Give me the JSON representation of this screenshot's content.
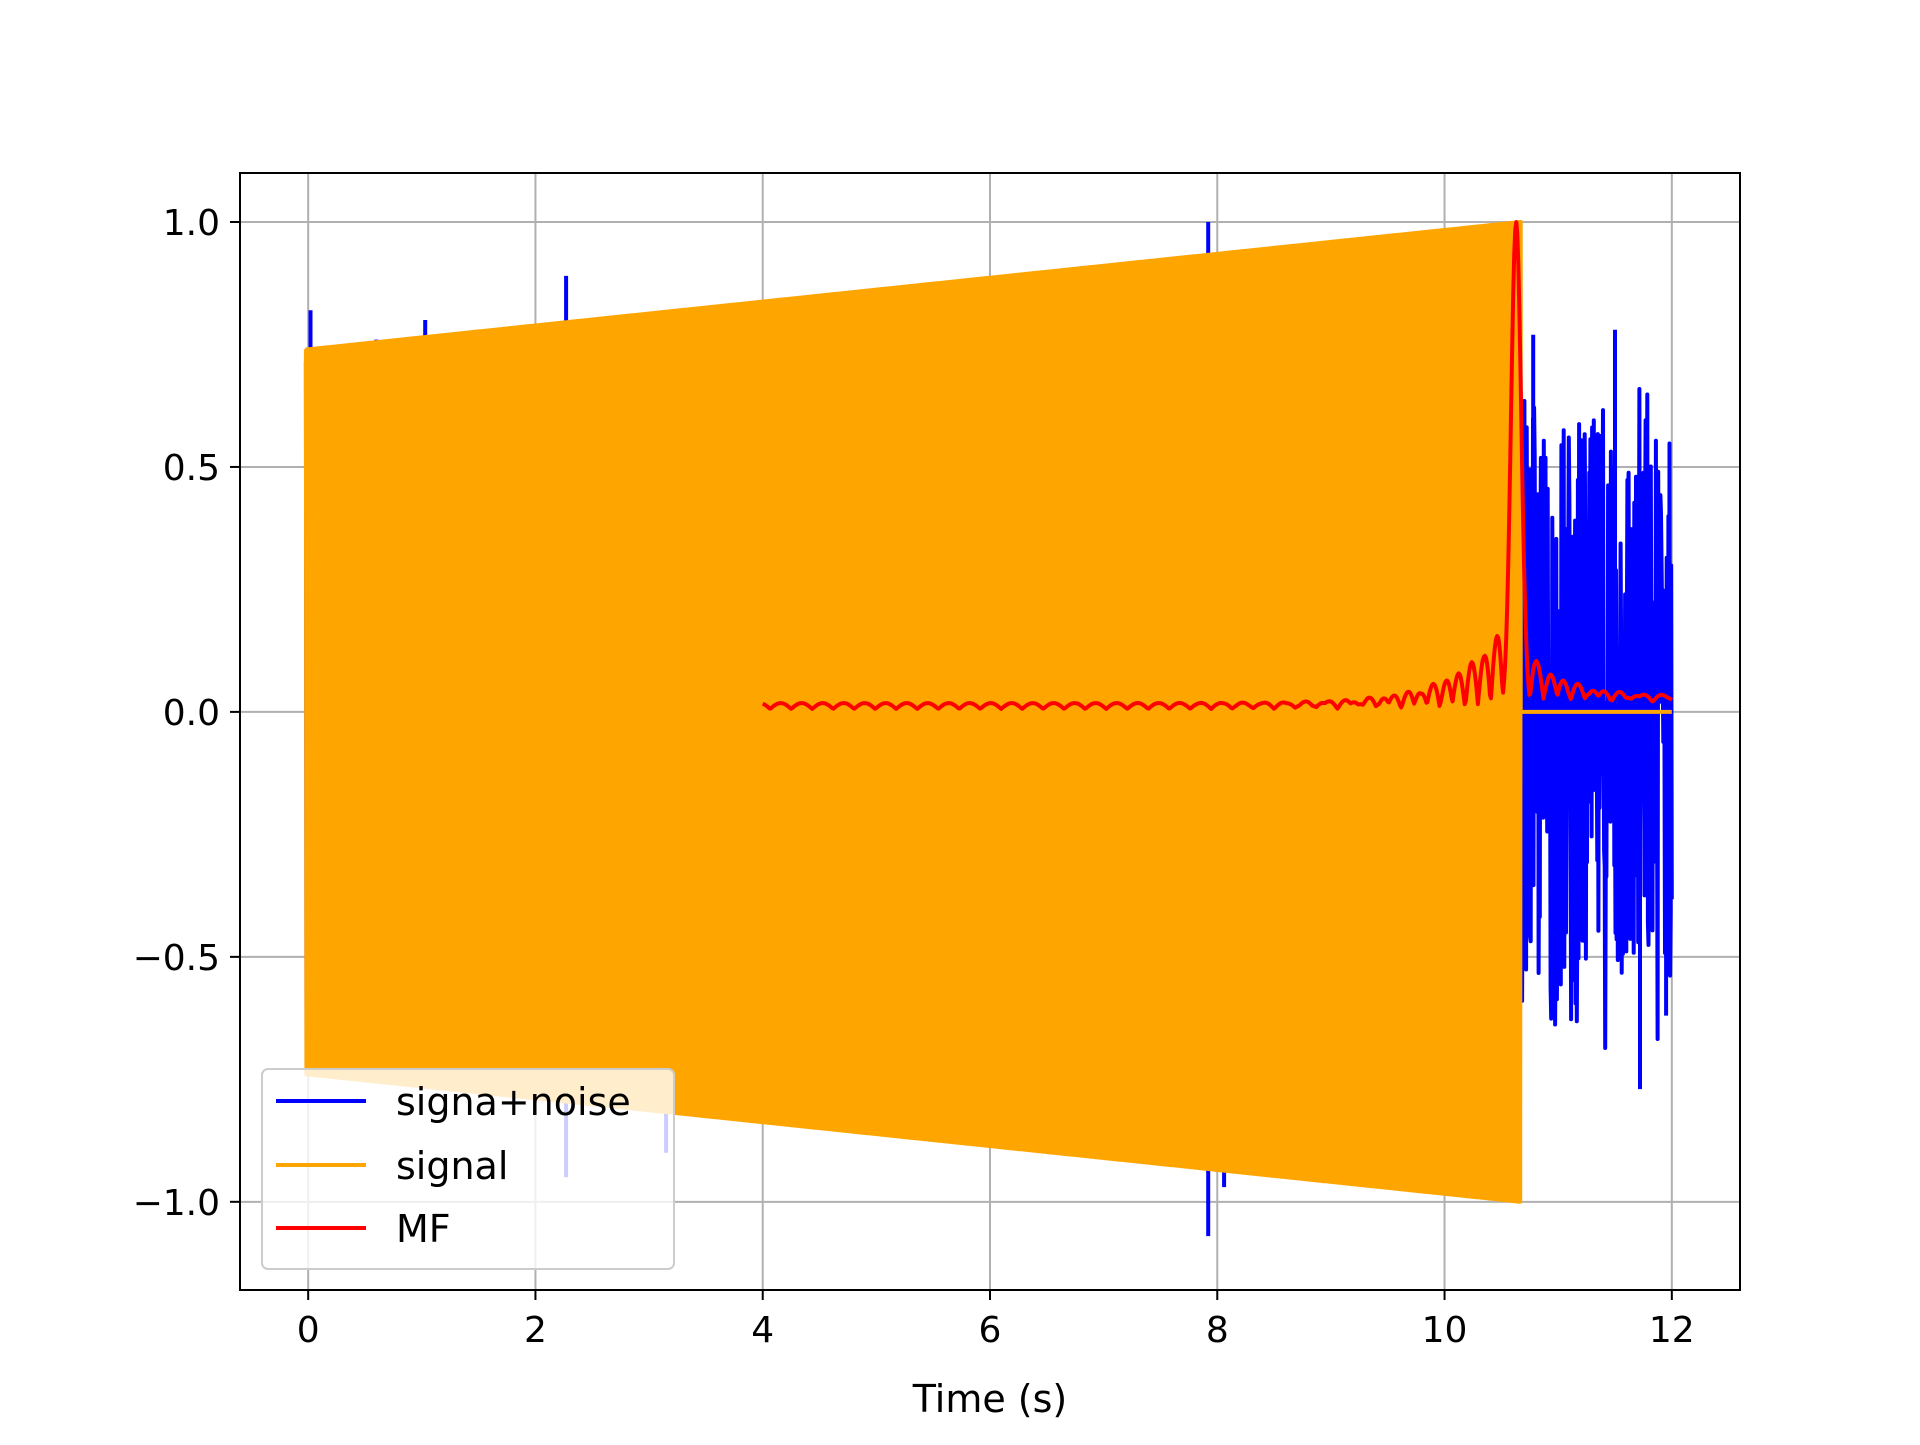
{
  "chart_data": {
    "type": "line",
    "title": "",
    "xlabel": "Time (s)",
    "ylabel": "",
    "xlim": [
      -0.6,
      12.6
    ],
    "ylim": [
      -1.18,
      1.1
    ],
    "x_ticks": [
      0,
      2,
      4,
      6,
      8,
      10,
      12
    ],
    "x_tick_labels": [
      "0",
      "2",
      "4",
      "6",
      "8",
      "10",
      "12"
    ],
    "y_ticks": [
      -1.0,
      -0.5,
      0.0,
      0.5,
      1.0
    ],
    "y_tick_labels": [
      "−1.0",
      "−0.5",
      "0.0",
      "0.5",
      "1.0"
    ],
    "grid": true,
    "legend": {
      "placement": "lower-left"
    },
    "series": [
      {
        "name": "signa+noise",
        "color": "#0000ff",
        "kind": "noisy chirp",
        "t_range": [
          -0.02,
          12.0
        ],
        "signal_end_s": 10.67,
        "peak_points": [
          {
            "x": 0.02,
            "y": 0.82
          },
          {
            "x": 0.6,
            "y": 0.76
          },
          {
            "x": 1.03,
            "y": 0.8
          },
          {
            "x": 2.27,
            "y": 0.89
          },
          {
            "x": 7.92,
            "y": 1.0
          },
          {
            "x": 7.92,
            "y": -1.07
          },
          {
            "x": 8.06,
            "y": -0.97
          },
          {
            "x": 2.27,
            "y": -0.95
          },
          {
            "x": 3.15,
            "y": -0.9
          },
          {
            "x": 10.78,
            "y": 0.77
          },
          {
            "x": 11.5,
            "y": 0.78
          },
          {
            "x": 11.72,
            "y": -0.77
          },
          {
            "x": 11.95,
            "y": -0.62
          }
        ],
        "after_signal_range": [
          -0.6,
          0.6
        ]
      },
      {
        "name": "signal",
        "color": "#ffa500",
        "kind": "chirp",
        "t_range": [
          -0.02,
          10.67
        ],
        "envelope_start": 0.74,
        "envelope_end": 1.0,
        "after_end_value": 0.0,
        "after_end_range": [
          10.67,
          12.0
        ]
      },
      {
        "name": "MF",
        "color": "#ff0000",
        "kind": "matched filter",
        "t_range": [
          4.0,
          12.0
        ],
        "peak": {
          "x": 10.63,
          "y": 1.0
        },
        "baseline": 0.01
      }
    ]
  }
}
